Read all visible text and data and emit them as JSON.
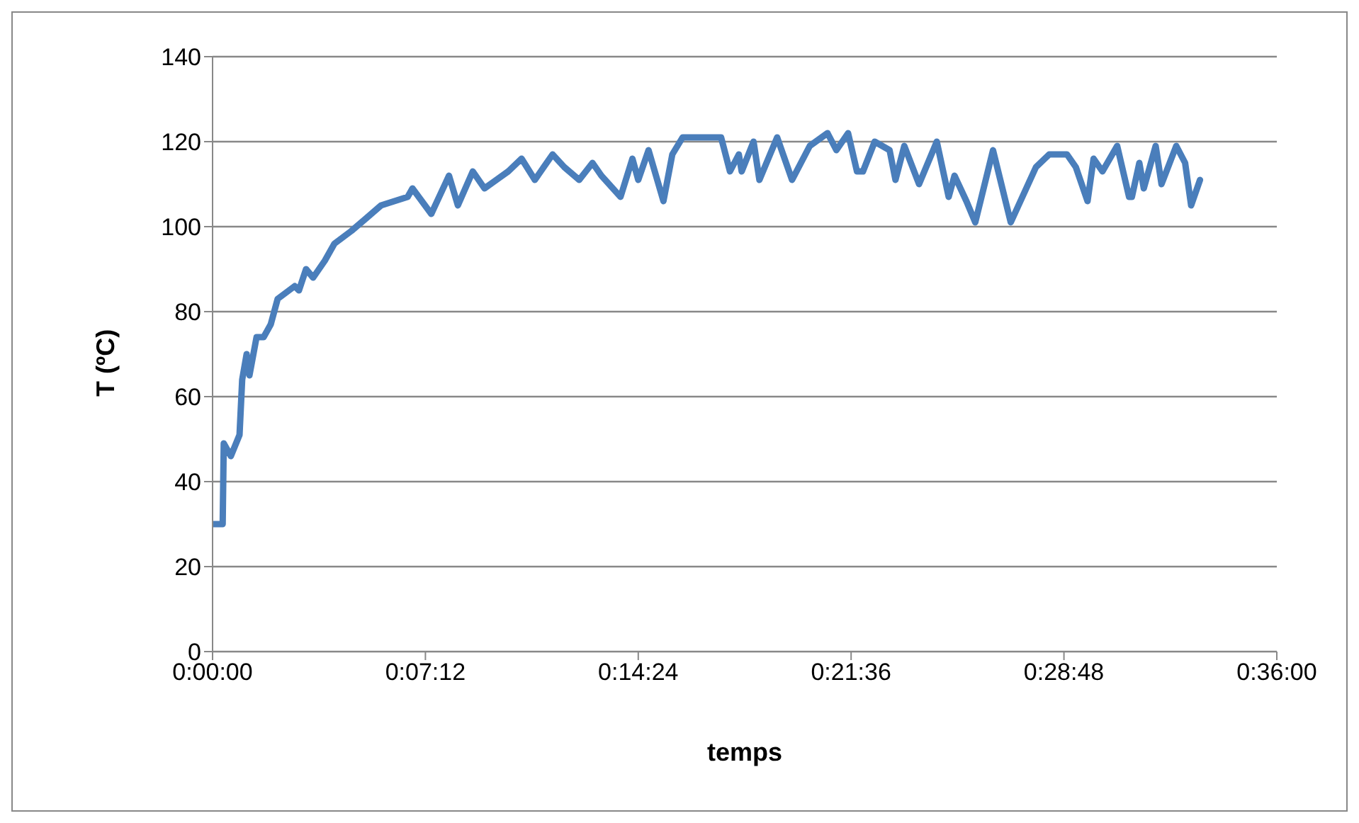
{
  "chart_data": {
    "type": "line",
    "xlabel": "temps",
    "ylabel": "T (ºC)",
    "x": [
      0,
      0.0057,
      0.0063,
      0.0103,
      0.0152,
      0.0167,
      0.0192,
      0.0208,
      0.0248,
      0.0288,
      0.0328,
      0.0367,
      0.0463,
      0.0487,
      0.0527,
      0.0567,
      0.0633,
      0.0687,
      0.0783,
      0.0867,
      0.095,
      0.11,
      0.1127,
      0.1233,
      0.1333,
      0.1383,
      0.1467,
      0.1533,
      0.1667,
      0.1742,
      0.1817,
      0.1917,
      0.1983,
      0.2067,
      0.2142,
      0.2192,
      0.23,
      0.2367,
      0.24,
      0.2458,
      0.2542,
      0.2592,
      0.265,
      0.2867,
      0.2917,
      0.2967,
      0.2983,
      0.305,
      0.3083,
      0.3183,
      0.3267,
      0.3367,
      0.3467,
      0.3517,
      0.3583,
      0.3633,
      0.3667,
      0.3733,
      0.3817,
      0.385,
      0.39,
      0.3983,
      0.4083,
      0.415,
      0.4183,
      0.425,
      0.43,
      0.44,
      0.45,
      0.4642,
      0.4717,
      0.4817,
      0.4867,
      0.4933,
      0.4967,
      0.5017,
      0.51,
      0.5167,
      0.5183,
      0.5225,
      0.525,
      0.5317,
      0.535,
      0.5433,
      0.5483,
      0.5517,
      0.5567
    ],
    "series": [
      {
        "color": "#4a7ebb",
        "values": [
          30,
          30,
          49,
          46,
          51,
          64,
          70,
          65,
          74,
          74,
          77,
          83,
          86,
          85,
          90,
          88,
          92,
          96,
          99,
          102,
          105,
          107,
          109,
          103,
          112,
          105,
          113,
          109,
          113,
          116,
          111,
          117,
          114,
          111,
          115,
          112,
          107,
          116,
          111,
          118,
          106,
          117,
          121,
          121,
          113,
          117,
          113,
          120,
          111,
          121,
          111,
          119,
          122,
          118,
          122,
          113,
          113,
          120,
          118,
          111,
          119,
          110,
          120,
          107,
          112,
          106,
          101,
          118,
          101,
          114,
          117,
          117,
          114,
          106,
          116,
          113,
          119,
          107,
          107,
          115,
          109,
          119,
          110,
          119,
          115,
          105,
          111
        ]
      }
    ],
    "xlim": [
      0,
      0.6
    ],
    "xticks": [
      {
        "value": 0,
        "label": "0:00:00"
      },
      {
        "value": 0.12,
        "label": "0:07:12"
      },
      {
        "value": 0.24,
        "label": "0:14:24"
      },
      {
        "value": 0.36,
        "label": "0:21:36"
      },
      {
        "value": 0.48,
        "label": "0:28:48"
      },
      {
        "value": 0.6,
        "label": "0:36:00"
      }
    ],
    "ylim": [
      0,
      140
    ],
    "yticks": [
      0,
      20,
      40,
      60,
      80,
      100,
      120,
      140
    ],
    "grid": "y",
    "marker": "none",
    "line_style": "solid",
    "legend": false
  }
}
